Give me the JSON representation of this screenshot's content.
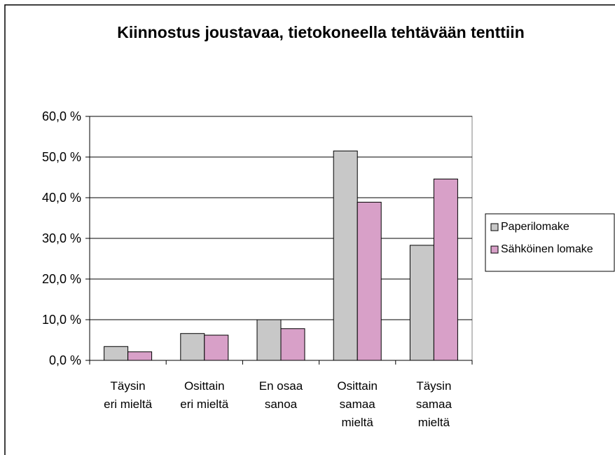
{
  "chart_data": {
    "type": "bar",
    "title": "Kiinnostus joustavaa, tietokoneella tehtävään tenttiin",
    "categories": [
      "Täysin\neri mieltä",
      "Osittain\neri mieltä",
      "En osaa\nsanoa",
      "Osittain\nsamaa\nmieltä",
      "Täysin\nsamaa\nmieltä"
    ],
    "series": [
      {
        "name": "Paperilomake",
        "color": "#c8c8c8",
        "values": [
          3.4,
          6.6,
          10.0,
          51.5,
          28.3
        ]
      },
      {
        "name": "Sähköinen lomake",
        "color": "#d8a0c8",
        "values": [
          2.1,
          6.2,
          7.8,
          38.9,
          44.6
        ]
      }
    ],
    "ylim": [
      0,
      60
    ],
    "yticks": [
      {
        "value": 0,
        "label": "0,0 %"
      },
      {
        "value": 10,
        "label": "10,0 %"
      },
      {
        "value": 20,
        "label": "20,0 %"
      },
      {
        "value": 30,
        "label": "30,0 %"
      },
      {
        "value": 40,
        "label": "40,0 %"
      },
      {
        "value": 50,
        "label": "50,0 %"
      },
      {
        "value": 60,
        "label": "60,0 %"
      }
    ],
    "grid": true,
    "legend": "right"
  }
}
